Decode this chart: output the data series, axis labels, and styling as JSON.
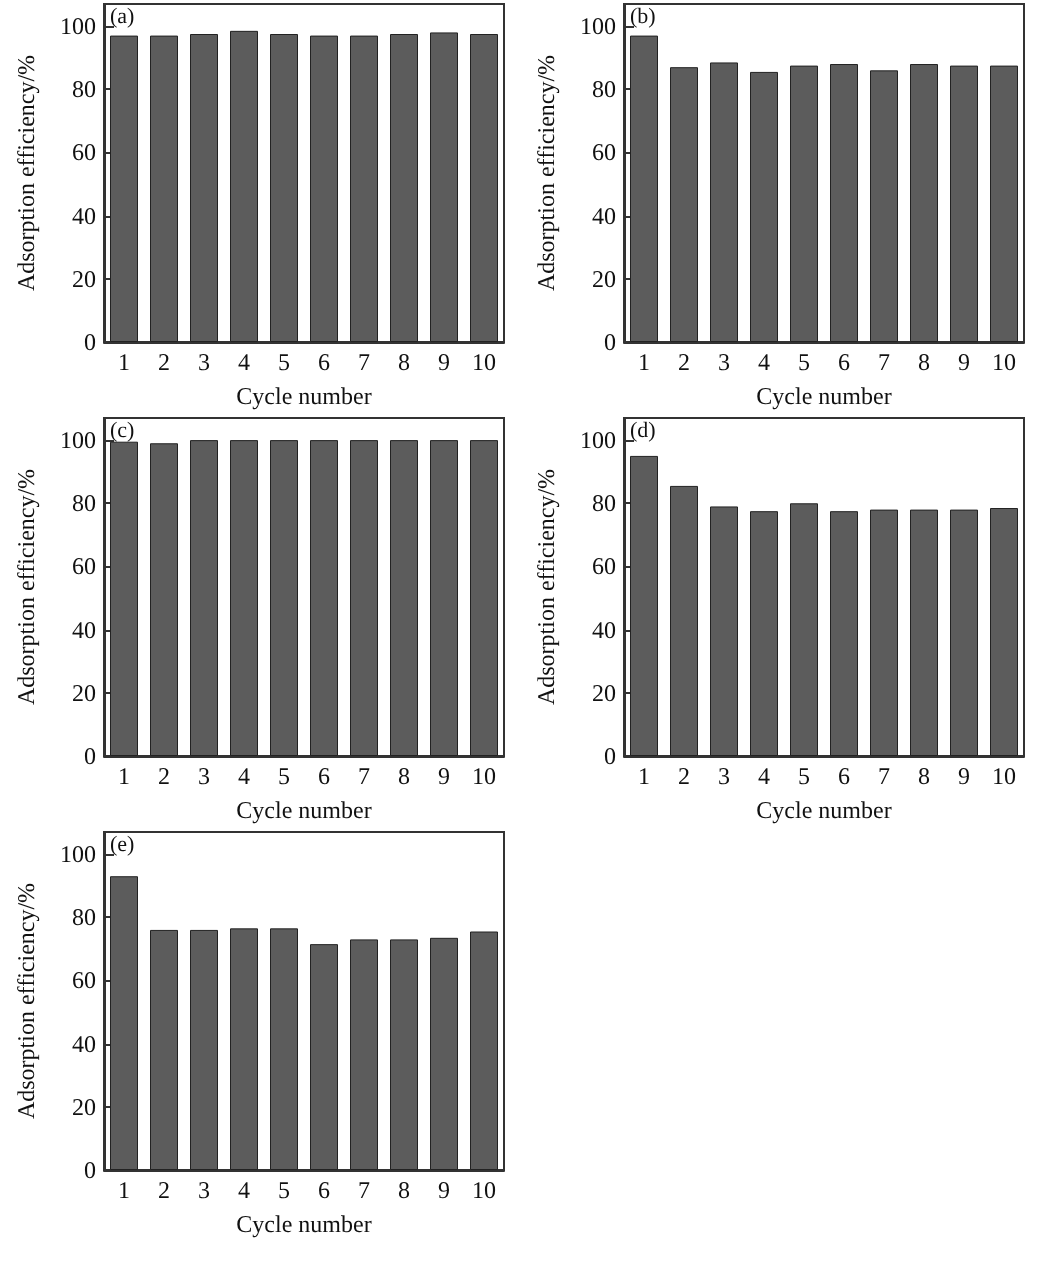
{
  "chart_data": [
    {
      "type": "bar",
      "annotations": [
        "(a)"
      ],
      "xlabel": "Cycle number",
      "ylabel": "Adsorption efficiency/%",
      "categories": [
        "1",
        "2",
        "3",
        "4",
        "5",
        "6",
        "7",
        "8",
        "9",
        "10"
      ],
      "values": [
        97,
        97,
        97.5,
        98.5,
        97.5,
        97,
        97,
        97.5,
        98,
        97.5
      ],
      "color": "#5c5c5c",
      "ylim": [
        0,
        107
      ],
      "yticks": [
        0,
        20,
        40,
        60,
        80,
        100
      ],
      "grid": false
    },
    {
      "type": "bar",
      "annotations": [
        "(b)"
      ],
      "xlabel": "Cycle number",
      "ylabel": "Adsorption efficiency/%",
      "categories": [
        "1",
        "2",
        "3",
        "4",
        "5",
        "6",
        "7",
        "8",
        "9",
        "10"
      ],
      "values": [
        97,
        87,
        88.5,
        85.5,
        87.5,
        88,
        86,
        88,
        87.5,
        87.5
      ],
      "color": "#5c5c5c",
      "ylim": [
        0,
        107
      ],
      "yticks": [
        0,
        20,
        40,
        60,
        80,
        100
      ],
      "grid": false
    },
    {
      "type": "bar",
      "annotations": [
        "(c)"
      ],
      "xlabel": "Cycle number",
      "ylabel": "Adsorption efficiency/%",
      "categories": [
        "1",
        "2",
        "3",
        "4",
        "5",
        "6",
        "7",
        "8",
        "9",
        "10"
      ],
      "values": [
        99.5,
        99,
        100,
        100,
        100,
        100,
        100,
        100,
        100,
        100
      ],
      "color": "#5c5c5c",
      "ylim": [
        0,
        107
      ],
      "yticks": [
        0,
        20,
        40,
        60,
        80,
        100
      ],
      "grid": false
    },
    {
      "type": "bar",
      "annotations": [
        "(d)"
      ],
      "xlabel": "Cycle number",
      "ylabel": "Adsorption efficiency/%",
      "categories": [
        "1",
        "2",
        "3",
        "4",
        "5",
        "6",
        "7",
        "8",
        "9",
        "10"
      ],
      "values": [
        95,
        85.5,
        79,
        77.5,
        80,
        77.5,
        78,
        78,
        78,
        78.5
      ],
      "color": "#5c5c5c",
      "ylim": [
        0,
        107
      ],
      "yticks": [
        0,
        20,
        40,
        60,
        80,
        100
      ],
      "grid": false
    },
    {
      "type": "bar",
      "annotations": [
        "(e)"
      ],
      "xlabel": "Cycle number",
      "ylabel": "Adsorption efficiency/%",
      "categories": [
        "1",
        "2",
        "3",
        "4",
        "5",
        "6",
        "7",
        "8",
        "9",
        "10"
      ],
      "values": [
        93,
        76,
        76,
        76.5,
        76.5,
        71.5,
        73,
        73,
        73.5,
        75.5
      ],
      "color": "#5c5c5c",
      "ylim": [
        0,
        107
      ],
      "yticks": [
        0,
        20,
        40,
        60,
        80,
        100
      ],
      "grid": false
    }
  ]
}
